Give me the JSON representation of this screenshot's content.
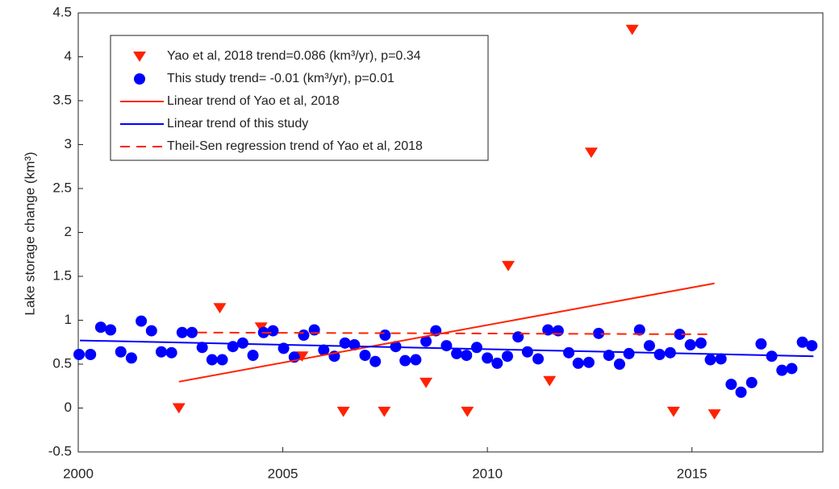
{
  "chart_data": {
    "type": "scatter",
    "ylabel": "Lake storage change  (km³)",
    "xlim": [
      2000,
      2018.2
    ],
    "xticks": [
      2000,
      2005,
      2010,
      2015
    ],
    "ylim": [
      -0.5,
      4.5
    ],
    "yticks": [
      -0.5,
      0,
      0.5,
      1,
      1.5,
      2,
      2.5,
      3,
      3.5,
      4,
      4.5
    ],
    "legend": "upper-left",
    "series": [
      {
        "name": "Yao et al, 2018  trend=0.086 (km³/yr), p=0.34",
        "color": "#ff2200",
        "marker": "triangle-down",
        "x": [
          2002.46,
          2003.46,
          2004.47,
          2005.47,
          2006.48,
          2007.48,
          2008.5,
          2009.51,
          2010.51,
          2011.52,
          2012.54,
          2013.54,
          2014.55,
          2015.55
        ],
        "values": [
          0.0,
          1.14,
          0.92,
          0.59,
          -0.04,
          -0.04,
          0.29,
          -0.04,
          1.62,
          0.31,
          2.91,
          4.31,
          -0.04,
          -0.07
        ]
      },
      {
        "name": "This study trend= -0.01 (km³/yr), p=0.01",
        "color": "#0000ff",
        "marker": "circle",
        "x": [
          2000.02,
          2000.3,
          2000.55,
          2000.79,
          2001.04,
          2001.3,
          2001.54,
          2001.79,
          2002.03,
          2002.28,
          2002.54,
          2002.78,
          2003.03,
          2003.27,
          2003.52,
          2003.78,
          2004.02,
          2004.27,
          2004.53,
          2004.76,
          2005.02,
          2005.28,
          2005.51,
          2005.77,
          2006.0,
          2006.26,
          2006.52,
          2006.75,
          2007.01,
          2007.26,
          2007.5,
          2007.76,
          2007.99,
          2008.25,
          2008.5,
          2008.74,
          2009.0,
          2009.25,
          2009.49,
          2009.74,
          2010.0,
          2010.24,
          2010.49,
          2010.75,
          2010.98,
          2011.24,
          2011.48,
          2011.73,
          2011.99,
          2012.22,
          2012.48,
          2012.72,
          2012.97,
          2013.23,
          2013.46,
          2013.72,
          2013.96,
          2014.21,
          2014.47,
          2014.7,
          2014.96,
          2015.22,
          2015.45,
          2015.71,
          2015.96,
          2016.2,
          2016.46,
          2016.69,
          2016.95,
          2017.2,
          2017.44,
          2017.7,
          2017.93
        ],
        "values": [
          0.61,
          0.61,
          0.92,
          0.89,
          0.64,
          0.57,
          0.99,
          0.88,
          0.64,
          0.63,
          0.86,
          0.86,
          0.69,
          0.55,
          0.55,
          0.7,
          0.74,
          0.6,
          0.86,
          0.88,
          0.68,
          0.58,
          0.83,
          0.89,
          0.66,
          0.59,
          0.74,
          0.72,
          0.6,
          0.53,
          0.83,
          0.7,
          0.54,
          0.55,
          0.76,
          0.88,
          0.71,
          0.62,
          0.6,
          0.69,
          0.57,
          0.51,
          0.59,
          0.81,
          0.64,
          0.56,
          0.89,
          0.88,
          0.63,
          0.51,
          0.52,
          0.85,
          0.6,
          0.5,
          0.62,
          0.89,
          0.71,
          0.61,
          0.63,
          0.84,
          0.72,
          0.74,
          0.55,
          0.56,
          0.27,
          0.18,
          0.29,
          0.73,
          0.59,
          0.43,
          0.45,
          0.75,
          0.71
        ]
      },
      {
        "name": "Linear trend of Yao et al, 2018",
        "color": "#ff2200",
        "line": "solid",
        "x": [
          2002.46,
          2015.55
        ],
        "values": [
          0.3,
          1.42
        ]
      },
      {
        "name": "Linear trend of this study",
        "color": "#0000ff",
        "line": "solid",
        "x": [
          2000.04,
          2017.97
        ],
        "values": [
          0.77,
          0.59
        ]
      },
      {
        "name": "Theil-Sen regression trend of Yao et al, 2018",
        "color": "#ff2200",
        "line": "dashed",
        "x": [
          2002.91,
          2015.39
        ],
        "values": [
          0.86,
          0.84
        ]
      }
    ]
  }
}
